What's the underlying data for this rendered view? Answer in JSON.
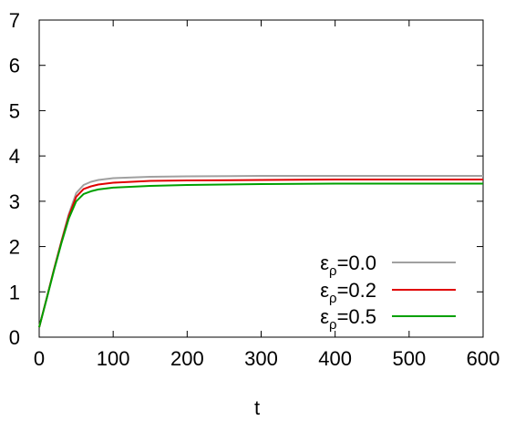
{
  "chart_data": {
    "type": "line",
    "xlabel": "t",
    "ylabel": "",
    "xlim": [
      0,
      600
    ],
    "ylim": [
      0,
      7
    ],
    "xticks": [
      0,
      100,
      200,
      300,
      400,
      500,
      600
    ],
    "yticks": [
      0,
      1,
      2,
      3,
      4,
      5,
      6,
      7
    ],
    "grid": false,
    "legend_position": "bottom-right",
    "series": [
      {
        "name": "ε_ρ=0.0",
        "legend": {
          "symbol": "ε",
          "sub": "ρ",
          "rest": "=0.0"
        },
        "color": "#a0a0a0",
        "x": [
          0,
          10,
          20,
          30,
          40,
          50,
          60,
          70,
          80,
          100,
          150,
          200,
          300,
          400,
          500,
          600
        ],
        "y": [
          0.22,
          0.85,
          1.5,
          2.12,
          2.72,
          3.18,
          3.36,
          3.43,
          3.47,
          3.51,
          3.54,
          3.55,
          3.56,
          3.56,
          3.56,
          3.56
        ]
      },
      {
        "name": "ε_ρ=0.2",
        "legend": {
          "symbol": "ε",
          "sub": "ρ",
          "rest": "=0.2"
        },
        "color": "#e00000",
        "x": [
          0,
          10,
          20,
          30,
          40,
          50,
          60,
          70,
          80,
          100,
          150,
          200,
          300,
          400,
          500,
          600
        ],
        "y": [
          0.22,
          0.85,
          1.49,
          2.1,
          2.68,
          3.1,
          3.27,
          3.33,
          3.37,
          3.41,
          3.45,
          3.46,
          3.47,
          3.48,
          3.48,
          3.48
        ]
      },
      {
        "name": "ε_ρ=0.5",
        "legend": {
          "symbol": "ε",
          "sub": "ρ",
          "rest": "=0.5"
        },
        "color": "#00a000",
        "x": [
          0,
          10,
          20,
          30,
          40,
          50,
          60,
          70,
          80,
          100,
          150,
          200,
          300,
          400,
          500,
          600
        ],
        "y": [
          0.22,
          0.84,
          1.47,
          2.07,
          2.62,
          3.0,
          3.16,
          3.22,
          3.26,
          3.3,
          3.34,
          3.36,
          3.38,
          3.39,
          3.39,
          3.39
        ]
      }
    ]
  }
}
